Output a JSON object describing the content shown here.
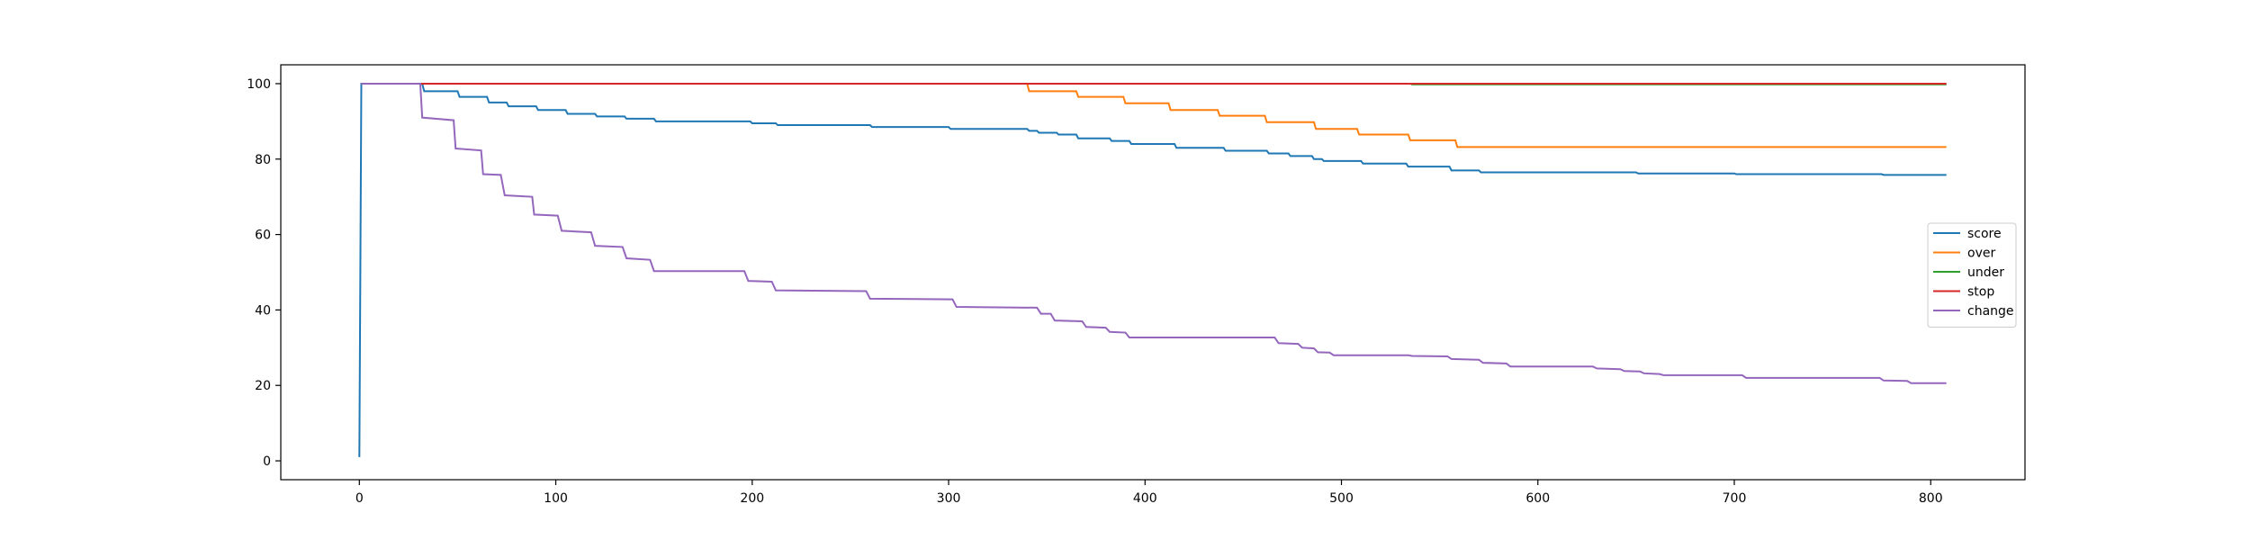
{
  "chart_data": {
    "type": "line",
    "title": "",
    "xlabel": "",
    "ylabel": "",
    "xlim": [
      -40,
      848
    ],
    "ylim": [
      -5,
      105
    ],
    "x_ticks": [
      0,
      100,
      200,
      300,
      400,
      500,
      600,
      700,
      800
    ],
    "y_ticks": [
      0,
      20,
      40,
      60,
      80,
      100
    ],
    "grid": false,
    "legend_position": "center-right",
    "series": [
      {
        "name": "score",
        "color": "#1f77b4",
        "points": [
          [
            0,
            1
          ],
          [
            1,
            100
          ],
          [
            32,
            100
          ],
          [
            33,
            98
          ],
          [
            50,
            98
          ],
          [
            51,
            96.5
          ],
          [
            65,
            96.5
          ],
          [
            66,
            95
          ],
          [
            75,
            95
          ],
          [
            76,
            94
          ],
          [
            90,
            94
          ],
          [
            91,
            93
          ],
          [
            105,
            93
          ],
          [
            106,
            92
          ],
          [
            120,
            92
          ],
          [
            121,
            91.3
          ],
          [
            135,
            91.3
          ],
          [
            136,
            90.7
          ],
          [
            150,
            90.7
          ],
          [
            151,
            90
          ],
          [
            199,
            90
          ],
          [
            200,
            89.5
          ],
          [
            212,
            89.5
          ],
          [
            213,
            89
          ],
          [
            260,
            89
          ],
          [
            261,
            88.5
          ],
          [
            300,
            88.5
          ],
          [
            301,
            88
          ],
          [
            340,
            88
          ],
          [
            341,
            87.5
          ],
          [
            345,
            87.5
          ],
          [
            346,
            87
          ],
          [
            355,
            87
          ],
          [
            356,
            86.5
          ],
          [
            365,
            86.5
          ],
          [
            366,
            85.5
          ],
          [
            382,
            85.5
          ],
          [
            383,
            84.8
          ],
          [
            392,
            84.8
          ],
          [
            393,
            84
          ],
          [
            415,
            84
          ],
          [
            416,
            83
          ],
          [
            440,
            83
          ],
          [
            441,
            82.2
          ],
          [
            462,
            82.2
          ],
          [
            463,
            81.5
          ],
          [
            473,
            81.5
          ],
          [
            474,
            80.8
          ],
          [
            485,
            80.8
          ],
          [
            486,
            80
          ],
          [
            490,
            80
          ],
          [
            491,
            79.5
          ],
          [
            510,
            79.5
          ],
          [
            511,
            78.8
          ],
          [
            533,
            78.8
          ],
          [
            534,
            78
          ],
          [
            555,
            78
          ],
          [
            556,
            77
          ],
          [
            570,
            77
          ],
          [
            571,
            76.5
          ],
          [
            650,
            76.5
          ],
          [
            651,
            76.2
          ],
          [
            700,
            76.2
          ],
          [
            701,
            76
          ],
          [
            775,
            76
          ],
          [
            776,
            75.8
          ],
          [
            808,
            75.8
          ]
        ]
      },
      {
        "name": "over",
        "color": "#ff7f0e",
        "points": [
          [
            1,
            100
          ],
          [
            340,
            100
          ],
          [
            341,
            98
          ],
          [
            365,
            98
          ],
          [
            366,
            96.5
          ],
          [
            389,
            96.5
          ],
          [
            390,
            94.8
          ],
          [
            412,
            94.8
          ],
          [
            413,
            93
          ],
          [
            437,
            93
          ],
          [
            438,
            91.5
          ],
          [
            461,
            91.5
          ],
          [
            462,
            89.8
          ],
          [
            486,
            89.8
          ],
          [
            487,
            88
          ],
          [
            508,
            88
          ],
          [
            509,
            86.5
          ],
          [
            534,
            86.5
          ],
          [
            535,
            85
          ],
          [
            558,
            85
          ],
          [
            559,
            83.2
          ],
          [
            808,
            83.2
          ]
        ]
      },
      {
        "name": "under",
        "color": "#2ca02c",
        "points": [
          [
            1,
            100
          ],
          [
            535,
            100
          ],
          [
            536,
            99.8
          ],
          [
            808,
            99.8
          ]
        ]
      },
      {
        "name": "stop",
        "color": "#d62728",
        "points": [
          [
            1,
            100
          ],
          [
            808,
            100
          ]
        ]
      },
      {
        "name": "change",
        "color": "#9467bd",
        "points": [
          [
            1,
            100
          ],
          [
            31,
            100
          ],
          [
            32,
            91
          ],
          [
            48,
            90.3
          ],
          [
            49,
            82.8
          ],
          [
            62,
            82.3
          ],
          [
            63,
            76
          ],
          [
            72,
            75.8
          ],
          [
            74,
            70.4
          ],
          [
            88,
            70
          ],
          [
            89,
            65.3
          ],
          [
            101,
            65
          ],
          [
            103,
            61
          ],
          [
            118,
            60.6
          ],
          [
            120,
            57
          ],
          [
            134,
            56.7
          ],
          [
            136,
            53.7
          ],
          [
            148,
            53.3
          ],
          [
            150,
            50.3
          ],
          [
            196,
            50.3
          ],
          [
            198,
            47.7
          ],
          [
            210,
            47.5
          ],
          [
            212,
            45.2
          ],
          [
            258,
            45
          ],
          [
            260,
            43
          ],
          [
            302,
            42.8
          ],
          [
            304,
            40.8
          ],
          [
            345,
            40.6
          ],
          [
            347,
            39
          ],
          [
            352,
            39
          ],
          [
            354,
            37.2
          ],
          [
            368,
            37
          ],
          [
            370,
            35.5
          ],
          [
            380,
            35.3
          ],
          [
            382,
            34.2
          ],
          [
            390,
            34
          ],
          [
            392,
            32.7
          ],
          [
            466,
            32.7
          ],
          [
            468,
            31.2
          ],
          [
            478,
            31
          ],
          [
            480,
            30
          ],
          [
            486,
            29.8
          ],
          [
            488,
            28.8
          ],
          [
            494,
            28.7
          ],
          [
            496,
            28
          ],
          [
            534,
            28
          ],
          [
            536,
            27.8
          ],
          [
            554,
            27.7
          ],
          [
            556,
            27
          ],
          [
            570,
            26.8
          ],
          [
            572,
            26
          ],
          [
            584,
            25.8
          ],
          [
            586,
            25
          ],
          [
            628,
            25
          ],
          [
            630,
            24.5
          ],
          [
            642,
            24.3
          ],
          [
            644,
            23.8
          ],
          [
            652,
            23.7
          ],
          [
            654,
            23.2
          ],
          [
            662,
            23
          ],
          [
            664,
            22.7
          ],
          [
            704,
            22.7
          ],
          [
            706,
            22
          ],
          [
            774,
            22
          ],
          [
            776,
            21.3
          ],
          [
            788,
            21.2
          ],
          [
            790,
            20.6
          ],
          [
            808,
            20.6
          ]
        ]
      }
    ]
  }
}
